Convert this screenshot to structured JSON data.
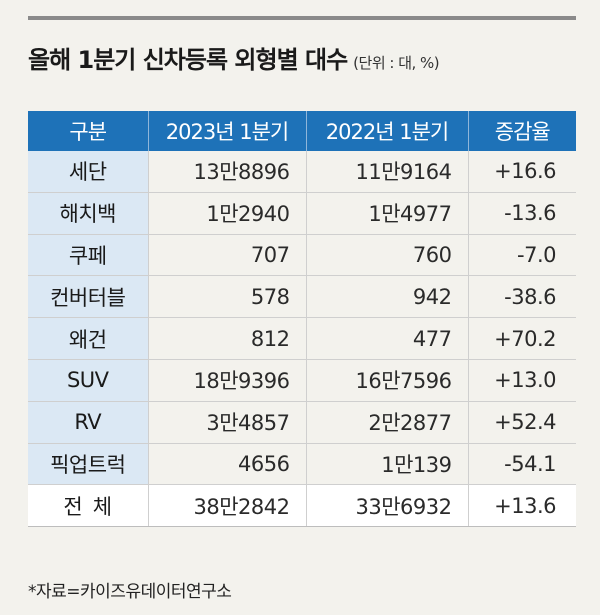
{
  "title": "올해 1분기 신차등록 외형별 대수",
  "unit": "(단위 : 대, %)",
  "table": {
    "headers": [
      "구분",
      "2023년 1분기",
      "2022년 1분기",
      "증감율"
    ],
    "rows": [
      [
        "세단",
        "13만8896",
        "11만9164",
        "+16.6"
      ],
      [
        "해치백",
        "1만2940",
        "1만4977",
        "-13.6"
      ],
      [
        "쿠페",
        "707",
        "760",
        "-7.0"
      ],
      [
        "컨버터블",
        "578",
        "942",
        "-38.6"
      ],
      [
        "왜건",
        "812",
        "477",
        "+70.2"
      ],
      [
        "SUV",
        "18만9396",
        "16만7596",
        "+13.0"
      ],
      [
        "RV",
        "3만4857",
        "2만2877",
        "+52.4"
      ],
      [
        "픽업트럭",
        "4656",
        "1만139",
        "-54.1"
      ]
    ],
    "total": [
      "전체",
      "38만2842",
      "33만6932",
      "+13.6"
    ]
  },
  "source": "*자료=카이즈유데이터연구소"
}
